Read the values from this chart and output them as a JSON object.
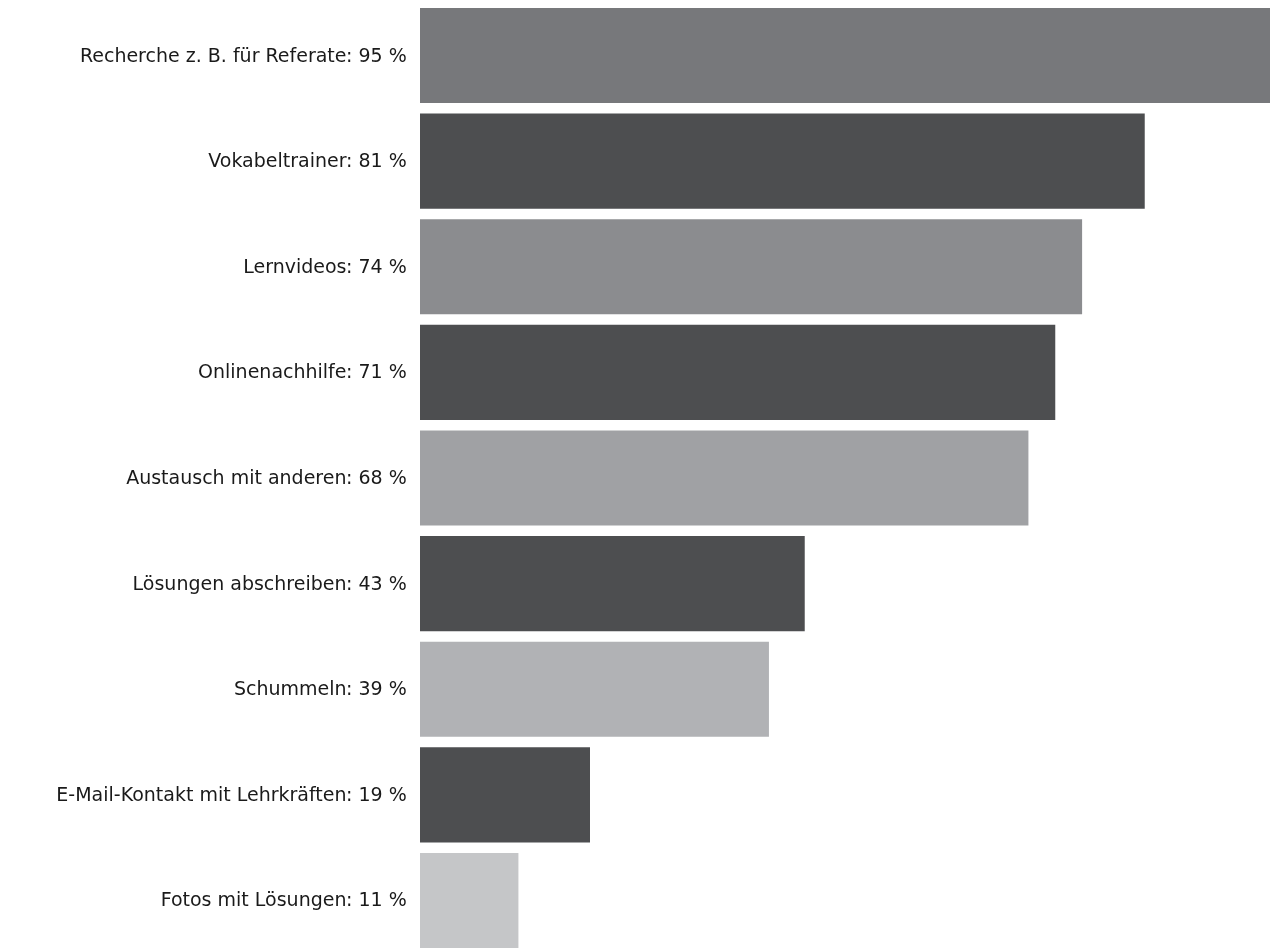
{
  "chart_data": {
    "type": "bar",
    "orientation": "horizontal",
    "categories": [
      "Recherche z. B. für Referate",
      "Vokabeltrainer",
      "Lernvideos",
      "Onlinenachhilfe",
      "Austausch mit anderen",
      "Lösungen abschreiben",
      "Schummeln",
      "E-Mail-Kontakt mit Lehrkräften",
      "Fotos mit Lösungen"
    ],
    "values": [
      95,
      81,
      74,
      71,
      68,
      43,
      39,
      19,
      11
    ],
    "value_labels": [
      ": 95 %",
      ": 81 %",
      ": 74 %",
      ": 71 %",
      ": 68 %",
      ": 43 %",
      ": 39 %",
      ": 19 %",
      ": 11 %"
    ],
    "colors": [
      "#77787b",
      "#4d4e50",
      "#8b8c8f",
      "#4d4e50",
      "#a0a1a4",
      "#4d4e50",
      "#b1b2b5",
      "#4d4e50",
      "#c5c6c8"
    ]
  }
}
